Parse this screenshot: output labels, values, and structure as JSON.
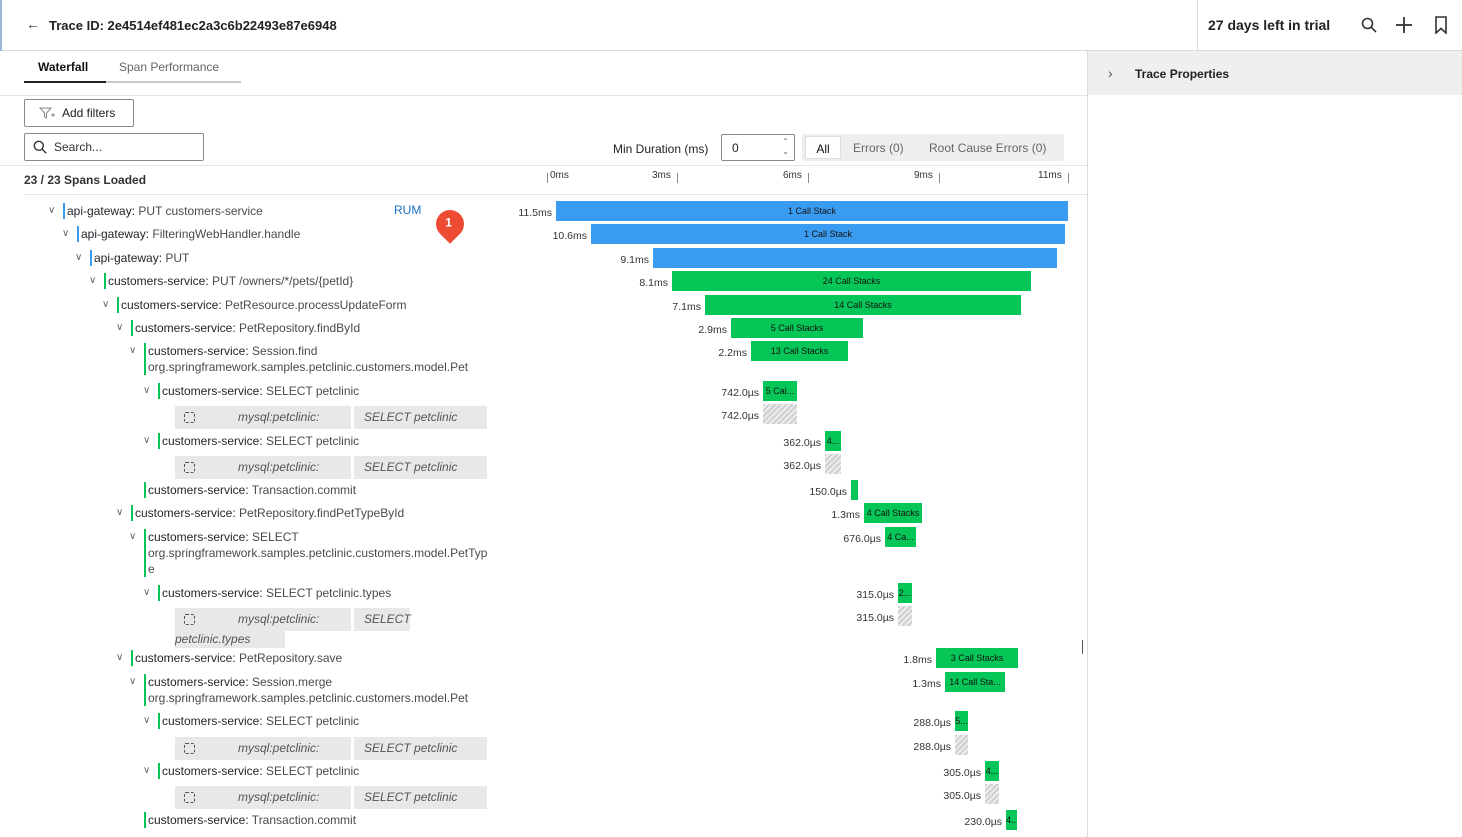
{
  "header": {
    "back_icon": "arrow-left-icon",
    "trace_title": "Trace ID: 2e4514ef481ec2a3c6b22493e87e6948",
    "trial_text": "27 days left in trial",
    "icons": [
      "search-icon",
      "plus-icon",
      "bookmark-icon"
    ]
  },
  "tabs": [
    {
      "label": "Waterfall",
      "active": true
    },
    {
      "label": "Span Performance",
      "active": false
    }
  ],
  "toolbar": {
    "add_filters": "Add filters",
    "search_placeholder": "Search...",
    "min_duration_label": "Min Duration (ms)",
    "min_duration_value": "0",
    "segments": [
      "All",
      "Errors (0)",
      "Root Cause Errors (0)"
    ]
  },
  "spans_loaded": "23 / 23 Spans Loaded",
  "axis_ticks": [
    "0ms",
    "3ms",
    "6ms",
    "9ms",
    "11ms"
  ],
  "right_panel": {
    "title": "Trace Properties"
  },
  "rum": {
    "label": "RUM",
    "badge": "1"
  },
  "colors": {
    "gateway": "#3a9cf0",
    "customers": "#06c657"
  },
  "rows": [
    {
      "svc": "api-gateway:",
      "op": " PUT customers-service",
      "dur": "11.5ms",
      "bar_label": "1 Call Stack"
    },
    {
      "svc": "api-gateway:",
      "op": " FilteringWebHandler.handle",
      "dur": "10.6ms",
      "bar_label": "1 Call Stack"
    },
    {
      "svc": "api-gateway:",
      "op": " PUT",
      "dur": "9.1ms",
      "bar_label": ""
    },
    {
      "svc": "customers-service:",
      "op": " PUT /owners/*/pets/{petId}",
      "dur": "8.1ms",
      "bar_label": "24 Call Stacks"
    },
    {
      "svc": "customers-service:",
      "op": " PetResource.processUpdateForm",
      "dur": "7.1ms",
      "bar_label": "14 Call Stacks"
    },
    {
      "svc": "customers-service:",
      "op": " PetRepository.findById",
      "dur": "2.9ms",
      "bar_label": "5 Call Stacks"
    },
    {
      "svc": "customers-service:",
      "op": " Session.find",
      "op2": "org.springframework.samples.petclinic.customers.model.Pet",
      "dur": "2.2ms",
      "bar_label": "13 Call Stacks"
    },
    {
      "svc": "customers-service:",
      "op": " SELECT petclinic",
      "dur": "742.0µs",
      "bar_label": "5 Cal..."
    },
    {
      "db1": "mysql:petclinic:",
      "db2": "SELECT petclinic",
      "dur": "742.0µs"
    },
    {
      "svc": "customers-service:",
      "op": " SELECT petclinic",
      "dur": "362.0µs",
      "bar_label": "4..."
    },
    {
      "db1": "mysql:petclinic:",
      "db2": "SELECT petclinic",
      "dur": "362.0µs"
    },
    {
      "svc": "customers-service:",
      "op": " Transaction.commit",
      "dur": "150.0µs",
      "bar_label": ""
    },
    {
      "svc": "customers-service:",
      "op": " PetRepository.findPetTypeById",
      "dur": "1.3ms",
      "bar_label": "4 Call Stacks"
    },
    {
      "svc": "customers-service:",
      "op": " SELECT",
      "op2": "org.springframework.samples.petclinic.customers.model.PetTyp",
      "op3": "e",
      "dur": "676.0µs",
      "bar_label": "4 Ca..."
    },
    {
      "svc": "customers-service:",
      "op": " SELECT petclinic.types",
      "dur": "315.0µs",
      "bar_label": "2..."
    },
    {
      "db1": "mysql:petclinic:",
      "db2": "SELECT",
      "db3": "petclinic.types",
      "dur": "315.0µs"
    },
    {
      "svc": "customers-service:",
      "op": " PetRepository.save",
      "dur": "1.8ms",
      "bar_label": "3 Call Stacks"
    },
    {
      "svc": "customers-service:",
      "op": " Session.merge",
      "op2": "org.springframework.samples.petclinic.customers.model.Pet",
      "dur": "1.3ms",
      "bar_label": "14 Call Sta..."
    },
    {
      "svc": "customers-service:",
      "op": " SELECT petclinic",
      "dur": "288.0µs",
      "bar_label": "5..."
    },
    {
      "db1": "mysql:petclinic:",
      "db2": "SELECT petclinic",
      "dur": "288.0µs"
    },
    {
      "svc": "customers-service:",
      "op": " SELECT petclinic",
      "dur": "305.0µs",
      "bar_label": "4..."
    },
    {
      "db1": "mysql:petclinic:",
      "db2": "SELECT petclinic",
      "dur": "305.0µs"
    },
    {
      "svc": "customers-service:",
      "op": " Transaction.commit",
      "dur": "230.0µs",
      "bar_label": "4..."
    }
  ]
}
